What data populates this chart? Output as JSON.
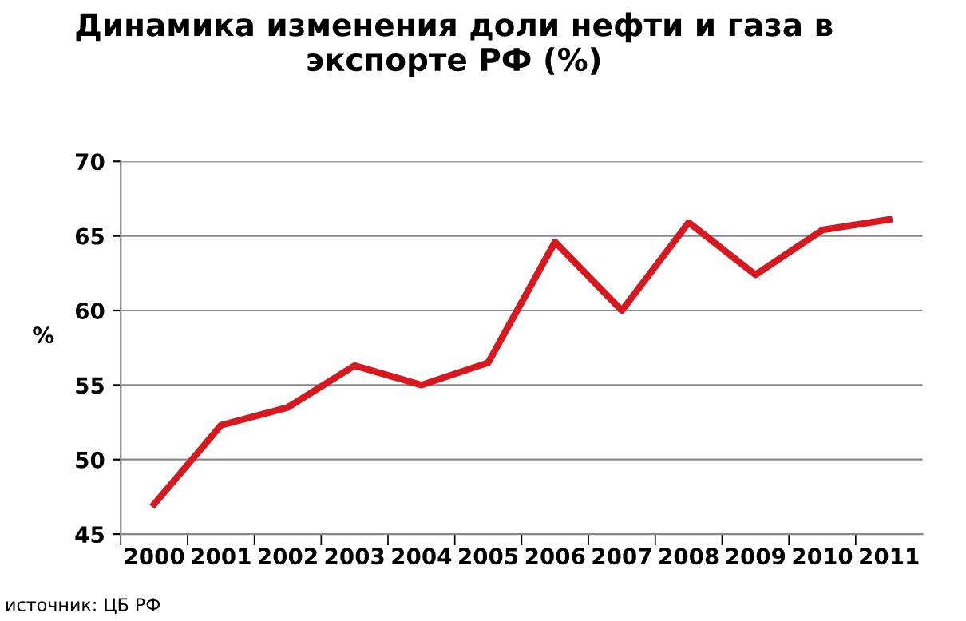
{
  "chart_data": {
    "type": "line",
    "title": "Динамика изменения доли нефти и газа в\nэкспорте РФ (%)",
    "ylabel": "%",
    "categories": [
      "2000",
      "2001",
      "2002",
      "2003",
      "2004",
      "2005",
      "2006",
      "2007",
      "2008",
      "2009",
      "2010",
      "2011"
    ],
    "series": [
      {
        "color": "#d7181f",
        "values": [
          47.0,
          52.3,
          53.5,
          56.3,
          55.0,
          56.5,
          64.6,
          60.0,
          65.9,
          62.4,
          65.4,
          66.1
        ]
      }
    ],
    "ylim": [
      45,
      70
    ],
    "yticks": [
      45,
      50,
      55,
      60,
      65,
      70
    ],
    "grid": "y",
    "legend": false,
    "marker": "none",
    "line_style": "solid",
    "annotations": [
      "источник: ЦБ РФ"
    ]
  }
}
